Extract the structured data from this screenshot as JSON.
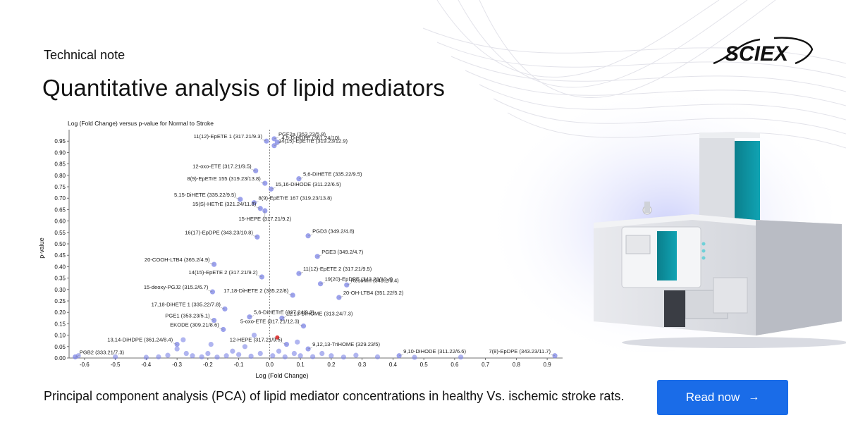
{
  "header": {
    "eyebrow": "Technical note",
    "title": "Quantitative analysis of lipid mediators",
    "logo_text": "SCIEX"
  },
  "caption": "Principal component analysis (PCA) of lipid mediator concentrations in healthy Vs. ischemic stroke rats.",
  "cta": {
    "label": "Read now",
    "arrow": "→",
    "color": "#1a6ce8"
  },
  "colors": {
    "point": "#7b83e6",
    "highlight_point": "#e04040",
    "accent": "#1a6ce8"
  },
  "chart_data": {
    "type": "scatter",
    "title": "Log (Fold Change) versus p-value for Normal to Stroke",
    "xlabel": "Log (Fold Change)",
    "ylabel": "p-value",
    "xlim": [
      -0.65,
      0.95
    ],
    "ylim": [
      0,
      1.0
    ],
    "x_ticks": [
      "-0.6",
      "-0.5",
      "-0.4",
      "-0.3",
      "-0.2",
      "-0.1",
      "0.0",
      "0.1",
      "0.2",
      "0.3",
      "0.4",
      "0.5",
      "0.6",
      "0.7",
      "0.8",
      "0.9"
    ],
    "x_tick_values": [
      -0.6,
      -0.5,
      -0.4,
      -0.3,
      -0.2,
      -0.1,
      0.0,
      0.1,
      0.2,
      0.3,
      0.4,
      0.5,
      0.6,
      0.7,
      0.8,
      0.9
    ],
    "y_ticks": [
      "0.00",
      "0.05",
      "0.10",
      "0.15",
      "0.20",
      "0.25",
      "0.30",
      "0.35",
      "0.40",
      "0.45",
      "0.50",
      "0.55",
      "0.60",
      "0.65",
      "0.70",
      "0.75",
      "0.80",
      "0.85",
      "0.90",
      "0.95"
    ],
    "y_tick_values": [
      0,
      0.05,
      0.1,
      0.15,
      0.2,
      0.25,
      0.3,
      0.35,
      0.4,
      0.45,
      0.5,
      0.55,
      0.6,
      0.65,
      0.7,
      0.75,
      0.8,
      0.85,
      0.9,
      0.95
    ],
    "grid": false,
    "labeled_points": [
      {
        "label": "PGF2a (353.23/5.8)",
        "x": 0.015,
        "y": 0.96,
        "side": "right"
      },
      {
        "label": "11(12)-EpETE 1 (317.21/9.3)",
        "x": -0.01,
        "y": 0.95,
        "side": "left"
      },
      {
        "label": "4,5-DiHDPE (361.24/10)",
        "x": 0.025,
        "y": 0.945,
        "side": "right"
      },
      {
        "label": "14(15)-EpETrE (319.23/12.9)",
        "x": 0.015,
        "y": 0.93,
        "side": "right"
      },
      {
        "label": "12-oxo-ETE (317.21/9.5)",
        "x": -0.045,
        "y": 0.82,
        "side": "left"
      },
      {
        "label": "5,6-DiHETE (335.22/9.5)",
        "x": 0.095,
        "y": 0.785,
        "side": "right"
      },
      {
        "label": "8(9)-EpETrE 155 (319.23/13.8)",
        "x": -0.015,
        "y": 0.765,
        "side": "left"
      },
      {
        "label": "15,16-DiHODE (311.22/6.5)",
        "x": 0.005,
        "y": 0.74,
        "side": "right"
      },
      {
        "label": "5,15-DiHETE (335.22/9.5)",
        "x": -0.095,
        "y": 0.695,
        "side": "left"
      },
      {
        "label": "8(9)-EpETrE 167 (319.23/13.8)",
        "x": -0.05,
        "y": 0.68,
        "side": "right"
      },
      {
        "label": "15(S)-HETrE (321.24/11.8)",
        "x": -0.03,
        "y": 0.655,
        "side": "left"
      },
      {
        "label": "15-HEPE (317.21/9.2)",
        "x": -0.015,
        "y": 0.645,
        "side": "below"
      },
      {
        "label": "16(17)-EpDPE (343.23/10.8)",
        "x": -0.04,
        "y": 0.53,
        "side": "left"
      },
      {
        "label": "PGD3 (349.2/4.8)",
        "x": 0.125,
        "y": 0.535,
        "side": "right"
      },
      {
        "label": "PGE3 (349.2/4.7)",
        "x": 0.155,
        "y": 0.445,
        "side": "right"
      },
      {
        "label": "20-COOH-LTB4 (365.2/4.9)",
        "x": -0.18,
        "y": 0.41,
        "side": "left"
      },
      {
        "label": "11(12)-EpETE 2 (317.21/9.5)",
        "x": 0.095,
        "y": 0.37,
        "side": "right"
      },
      {
        "label": "14(15)-EpETE 2 (317.21/9.2)",
        "x": -0.025,
        "y": 0.355,
        "side": "left"
      },
      {
        "label": "19(20)-EpDPE (343.23/10.4)",
        "x": 0.165,
        "y": 0.325,
        "side": "right"
      },
      {
        "label": "15-deoxy-PGJ2 (315.2/6.7)",
        "x": -0.185,
        "y": 0.29,
        "side": "left"
      },
      {
        "label": "Resolvin (349.2/3.4)",
        "x": 0.25,
        "y": 0.32,
        "side": "right"
      },
      {
        "label": "20-OH-LTB4 (351.22/5.2)",
        "x": 0.225,
        "y": 0.265,
        "side": "right"
      },
      {
        "label": "17,18-DiHETE 1 (335.22/7.8)",
        "x": -0.145,
        "y": 0.215,
        "side": "left"
      },
      {
        "label": "17,18-DiHETE 2 (335.22/8)",
        "x": 0.075,
        "y": 0.275,
        "side": "left"
      },
      {
        "label": "PGE1 (353.23/5.1)",
        "x": -0.18,
        "y": 0.165,
        "side": "left"
      },
      {
        "label": "5,6-DiHETrE (337.24/9.3)",
        "x": -0.065,
        "y": 0.18,
        "side": "right"
      },
      {
        "label": "12,13-DiHOME (313.24/7.3)",
        "x": 0.04,
        "y": 0.175,
        "side": "right"
      },
      {
        "label": "EKODE (309.21/8.6)",
        "x": -0.15,
        "y": 0.125,
        "side": "left"
      },
      {
        "label": "5-oxo-ETE (317.21/12.3)",
        "x": 0.11,
        "y": 0.14,
        "side": "left"
      },
      {
        "label": "13,14-DiHDPE (361.24/8.4)",
        "x": -0.3,
        "y": 0.06,
        "side": "left"
      },
      {
        "label": "12-HEPE (317.21/9.5)",
        "x": 0.055,
        "y": 0.06,
        "side": "left"
      },
      {
        "label": "9,12,13-TriHOME (329.23/5)",
        "x": 0.125,
        "y": 0.04,
        "side": "right"
      },
      {
        "label": "PGB2 (333.21/7.3)",
        "x": -0.63,
        "y": 0.005,
        "side": "right"
      },
      {
        "label": "9,10-DiHODE (311.22/6.6)",
        "x": 0.42,
        "y": 0.01,
        "side": "right"
      },
      {
        "label": "7(8)-EpDPE (343.23/11.7)",
        "x": 0.925,
        "y": 0.01,
        "side": "left"
      }
    ],
    "unlabeled_points": [
      {
        "x": -0.62,
        "y": 0.01
      },
      {
        "x": -0.5,
        "y": 0.005
      },
      {
        "x": -0.4,
        "y": 0.003
      },
      {
        "x": -0.36,
        "y": 0.005
      },
      {
        "x": -0.33,
        "y": 0.012
      },
      {
        "x": -0.3,
        "y": 0.04
      },
      {
        "x": -0.27,
        "y": 0.02
      },
      {
        "x": -0.25,
        "y": 0.01
      },
      {
        "x": -0.22,
        "y": 0.005
      },
      {
        "x": -0.2,
        "y": 0.02
      },
      {
        "x": -0.17,
        "y": 0.004
      },
      {
        "x": -0.14,
        "y": 0.01
      },
      {
        "x": -0.12,
        "y": 0.03
      },
      {
        "x": -0.1,
        "y": 0.015
      },
      {
        "x": -0.08,
        "y": 0.05
      },
      {
        "x": -0.06,
        "y": 0.008
      },
      {
        "x": -0.03,
        "y": 0.02
      },
      {
        "x": 0.01,
        "y": 0.01
      },
      {
        "x": 0.03,
        "y": 0.03
      },
      {
        "x": 0.05,
        "y": 0.005
      },
      {
        "x": 0.08,
        "y": 0.02
      },
      {
        "x": 0.1,
        "y": 0.01
      },
      {
        "x": 0.14,
        "y": 0.006
      },
      {
        "x": 0.17,
        "y": 0.02
      },
      {
        "x": 0.2,
        "y": 0.01
      },
      {
        "x": 0.24,
        "y": 0.004
      },
      {
        "x": 0.28,
        "y": 0.012
      },
      {
        "x": 0.35,
        "y": 0.005
      },
      {
        "x": 0.47,
        "y": 0.003
      },
      {
        "x": 0.62,
        "y": 0.004
      },
      {
        "x": -0.28,
        "y": 0.08
      },
      {
        "x": -0.05,
        "y": 0.1
      },
      {
        "x": 0.09,
        "y": 0.07
      },
      {
        "x": -0.19,
        "y": 0.06
      }
    ],
    "highlight_points": [
      {
        "x": 0.025,
        "y": 0.09
      }
    ]
  }
}
